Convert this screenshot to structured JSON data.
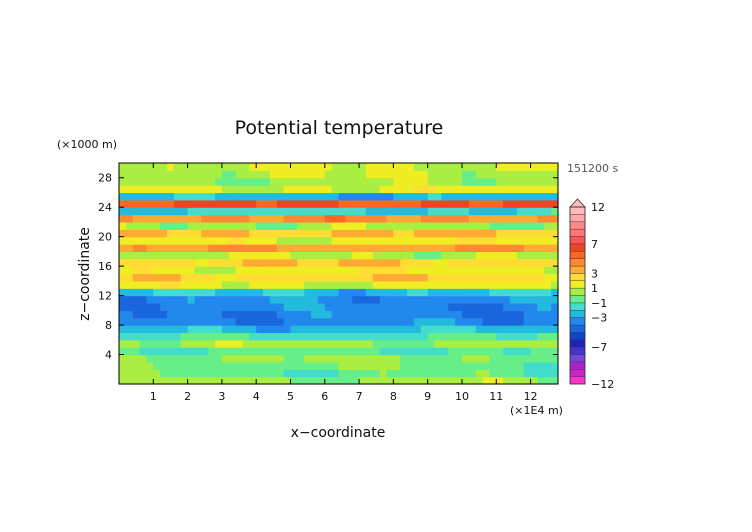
{
  "chart_data": {
    "type": "heatmap",
    "title": "Potential temperature",
    "time_label": "151200 s",
    "xlabel": "x−coordinate",
    "ylabel": "z−coordinate",
    "x_unit": "(×1E4 m)",
    "y_unit": "(×1000 m)",
    "xlim": [
      0,
      12.8
    ],
    "ylim": [
      0,
      30
    ],
    "x_ticks": [
      1,
      2,
      3,
      4,
      5,
      6,
      7,
      8,
      9,
      10,
      11,
      12
    ],
    "y_ticks": [
      4,
      8,
      12,
      16,
      20,
      24,
      28
    ],
    "colorbar": {
      "levels": [
        -12,
        -11,
        -10,
        -9,
        -8,
        -7,
        -6,
        -5,
        -4,
        -3,
        -2,
        -1,
        0,
        1,
        2,
        3,
        4,
        5,
        6,
        7,
        8,
        9,
        10,
        11,
        12
      ],
      "colors": [
        "#ff33cc",
        "#cc22cc",
        "#aa22cc",
        "#7744dd",
        "#4433cc",
        "#2222bb",
        "#1144cc",
        "#1a66dd",
        "#2288ee",
        "#22bbdd",
        "#44ddcc",
        "#66ee88",
        "#aaee44",
        "#eeee22",
        "#ffdd33",
        "#ffaa33",
        "#ff8833",
        "#ff6622",
        "#ee4422",
        "#ff5555",
        "#ff7777",
        "#ff8888",
        "#ffaaaa",
        "#ffbbbb"
      ],
      "tick_labels": [
        "12",
        "7",
        "3",
        "1",
        "−1",
        "−3",
        "−7",
        "−12"
      ],
      "tick_values": [
        12,
        7,
        3,
        1,
        -1,
        -3,
        -7,
        -12
      ]
    },
    "profile": [
      {
        "z": 0.5,
        "value": 0.2
      },
      {
        "z": 1.5,
        "value": -0.6
      },
      {
        "z": 2.5,
        "value": -0.3
      },
      {
        "z": 3.5,
        "value": 0.1
      },
      {
        "z": 4.5,
        "value": -0.8
      },
      {
        "z": 5.5,
        "value": 0.3
      },
      {
        "z": 6.5,
        "value": -1.2
      },
      {
        "z": 7.5,
        "value": -2.4
      },
      {
        "z": 8.5,
        "value": -3.5
      },
      {
        "z": 9.5,
        "value": -3.7
      },
      {
        "z": 10.5,
        "value": -3.6
      },
      {
        "z": 11.5,
        "value": -3.4
      },
      {
        "z": 12.5,
        "value": -2.2
      },
      {
        "z": 13.5,
        "value": 1.2
      },
      {
        "z": 14.5,
        "value": 2.6
      },
      {
        "z": 15.5,
        "value": 1.6
      },
      {
        "z": 16.5,
        "value": 2.8
      },
      {
        "z": 17.5,
        "value": 0.8
      },
      {
        "z": 18.5,
        "value": 3.8
      },
      {
        "z": 19.5,
        "value": 1.4
      },
      {
        "z": 20.5,
        "value": 3.0
      },
      {
        "z": 21.5,
        "value": 0.4
      },
      {
        "z": 22.5,
        "value": 4.2
      },
      {
        "z": 23.5,
        "value": -1.8
      },
      {
        "z": 24.5,
        "value": 6.0
      },
      {
        "z": 25.5,
        "value": -2.6
      },
      {
        "z": 26.5,
        "value": 1.2
      },
      {
        "z": 27.5,
        "value": 0.4
      },
      {
        "z": 28.5,
        "value": 0.8
      },
      {
        "z": 29.5,
        "value": 1.0
      }
    ]
  }
}
